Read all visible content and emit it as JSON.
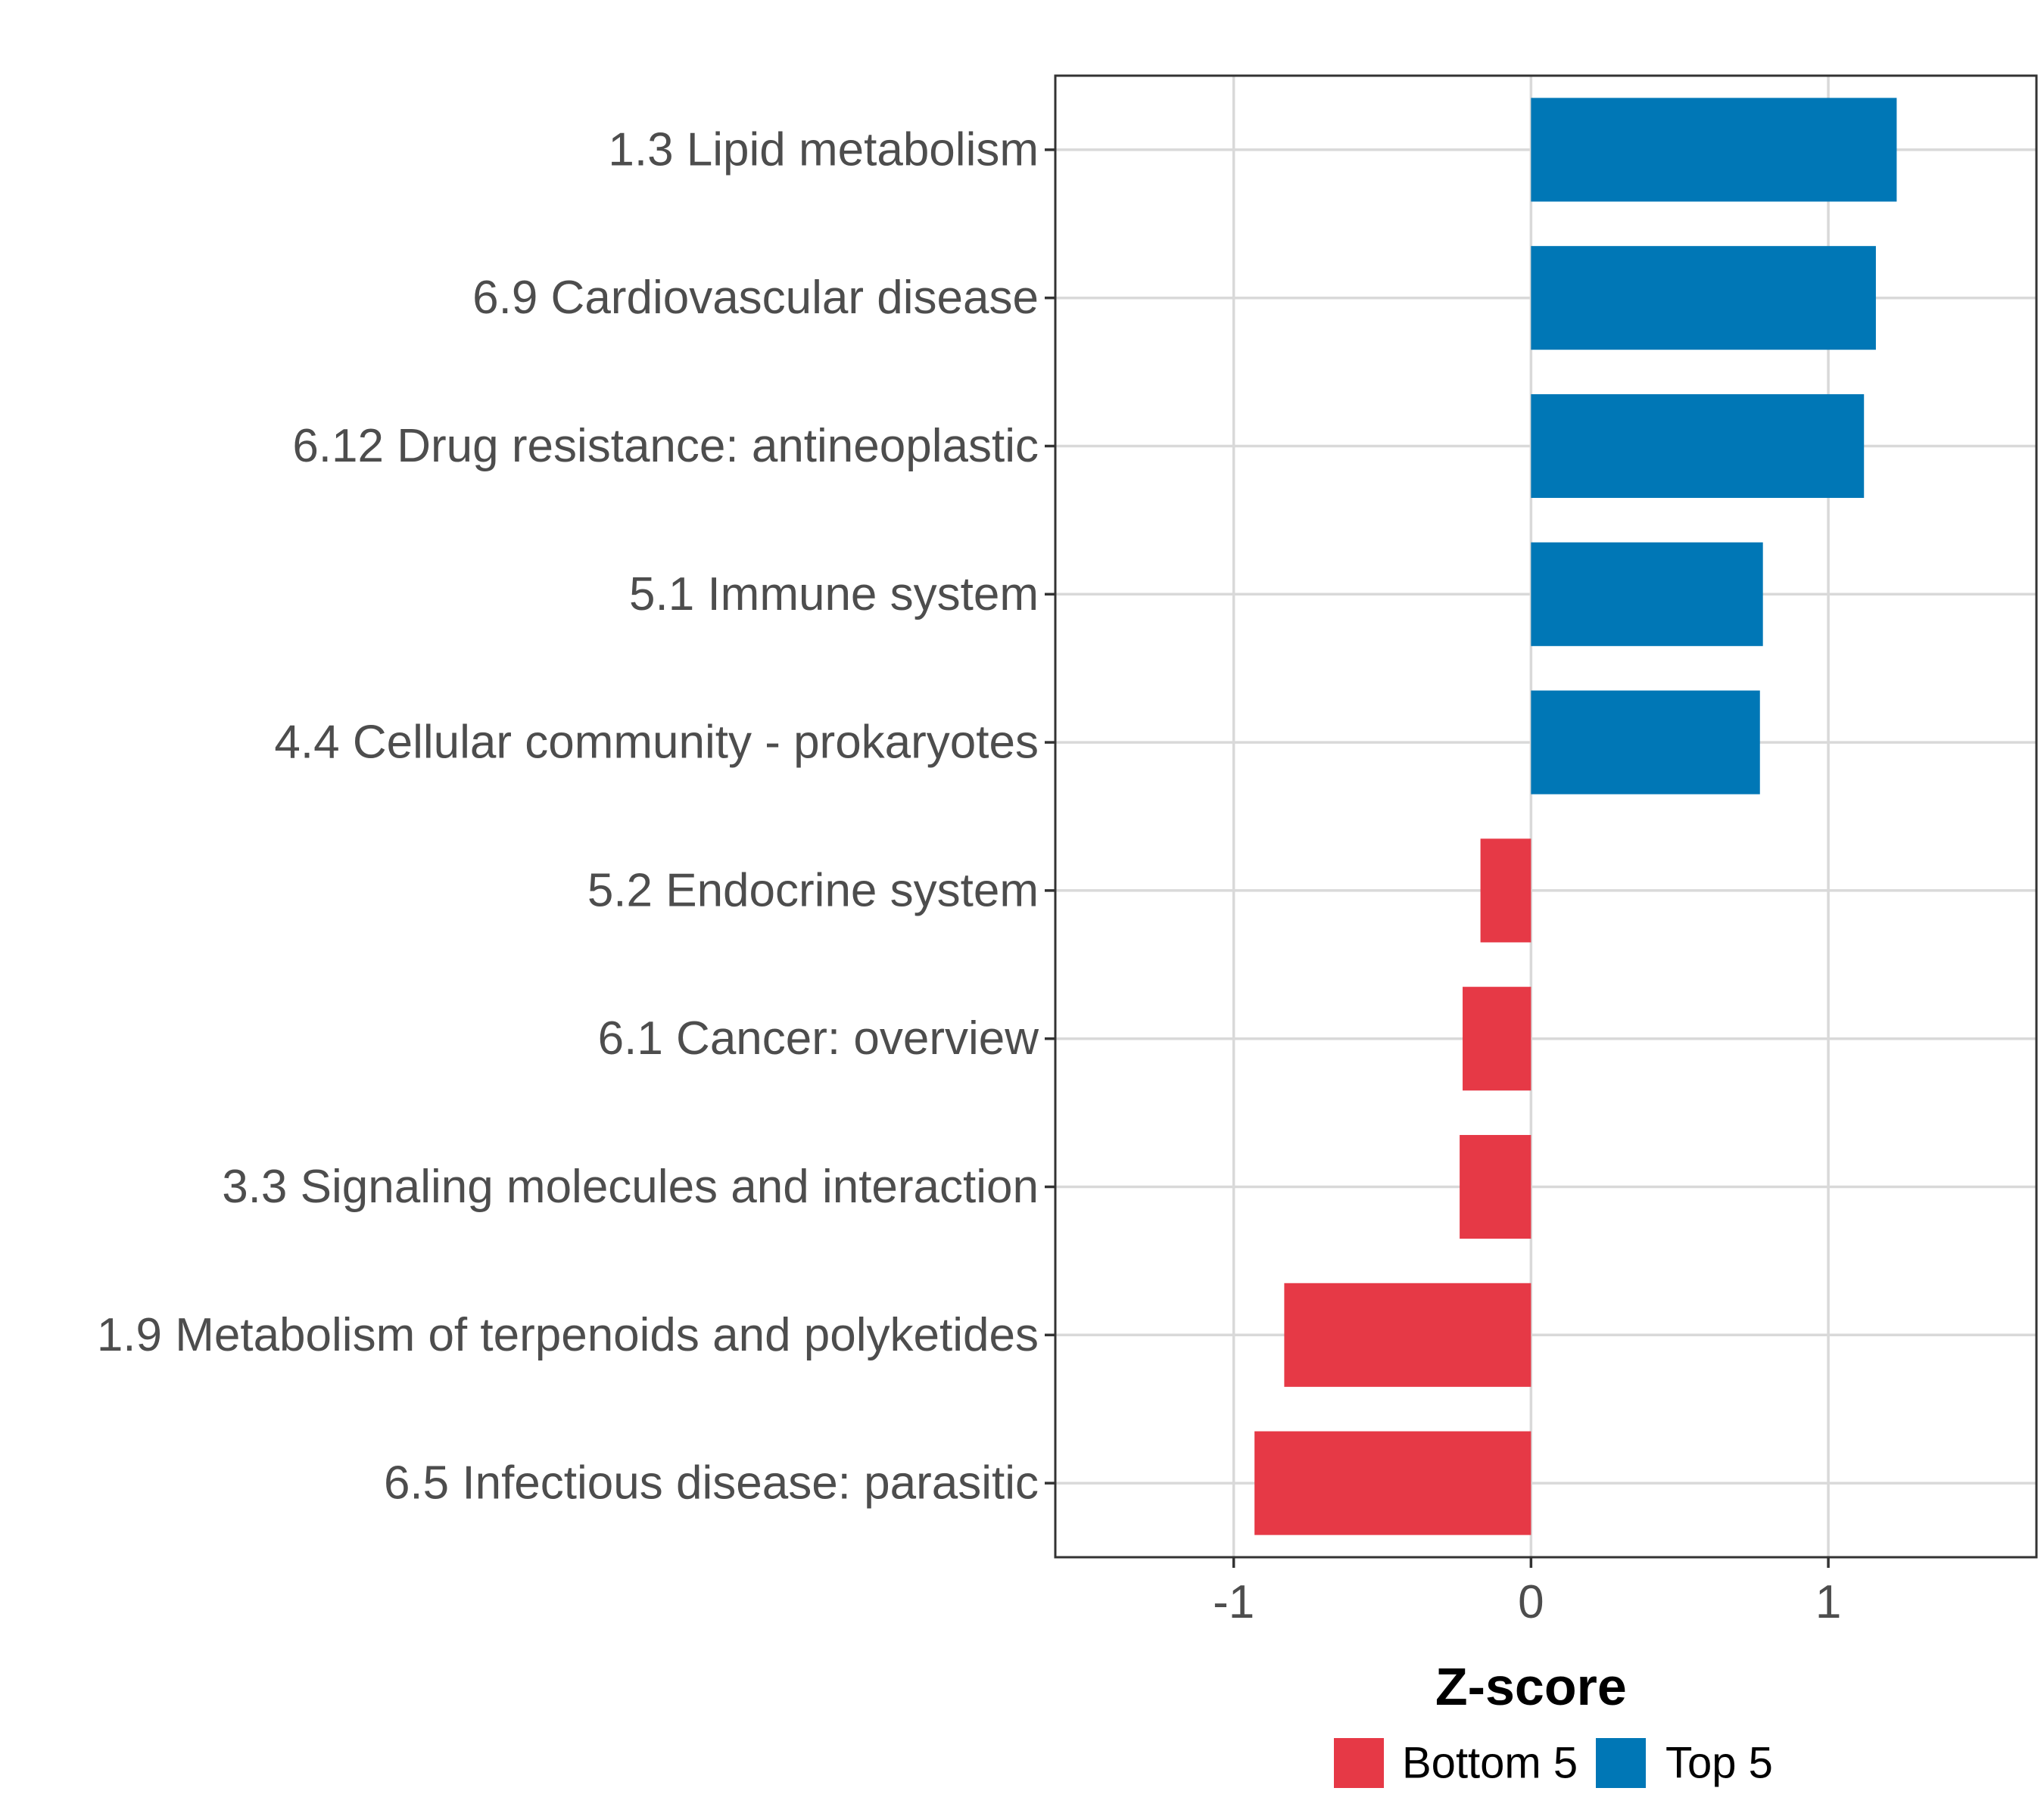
{
  "chart_data": {
    "type": "bar",
    "orientation": "horizontal",
    "title": "",
    "xlabel": "Z-score",
    "ylabel": "",
    "xlim": [
      -1.6,
      1.7
    ],
    "xticks": [
      -1,
      0,
      1
    ],
    "xtick_labels": [
      "-1",
      "0",
      "1"
    ],
    "grid": true,
    "legend_position": "bottom",
    "categories": [
      "1.3 Lipid metabolism",
      "6.9 Cardiovascular disease",
      "6.12 Drug resistance: antineoplastic",
      "5.1 Immune system",
      "4.4 Cellular community - prokaryotes",
      "5.2 Endocrine system",
      "6.1 Cancer: overview",
      "3.3 Signaling molecules and interaction",
      "1.9 Metabolism of terpenoids and polyketides",
      "6.5 Infectious disease: parasitic"
    ],
    "values": [
      1.23,
      1.16,
      1.12,
      0.78,
      0.77,
      -0.17,
      -0.23,
      -0.24,
      -0.83,
      -0.93
    ],
    "groups": [
      "Top 5",
      "Top 5",
      "Top 5",
      "Top 5",
      "Top 5",
      "Bottom 5",
      "Bottom 5",
      "Bottom 5",
      "Bottom 5",
      "Bottom 5"
    ],
    "legend": [
      {
        "name": "Bottom 5",
        "color": "#e63946"
      },
      {
        "name": "Top 5",
        "color": "#0077b6"
      }
    ]
  }
}
